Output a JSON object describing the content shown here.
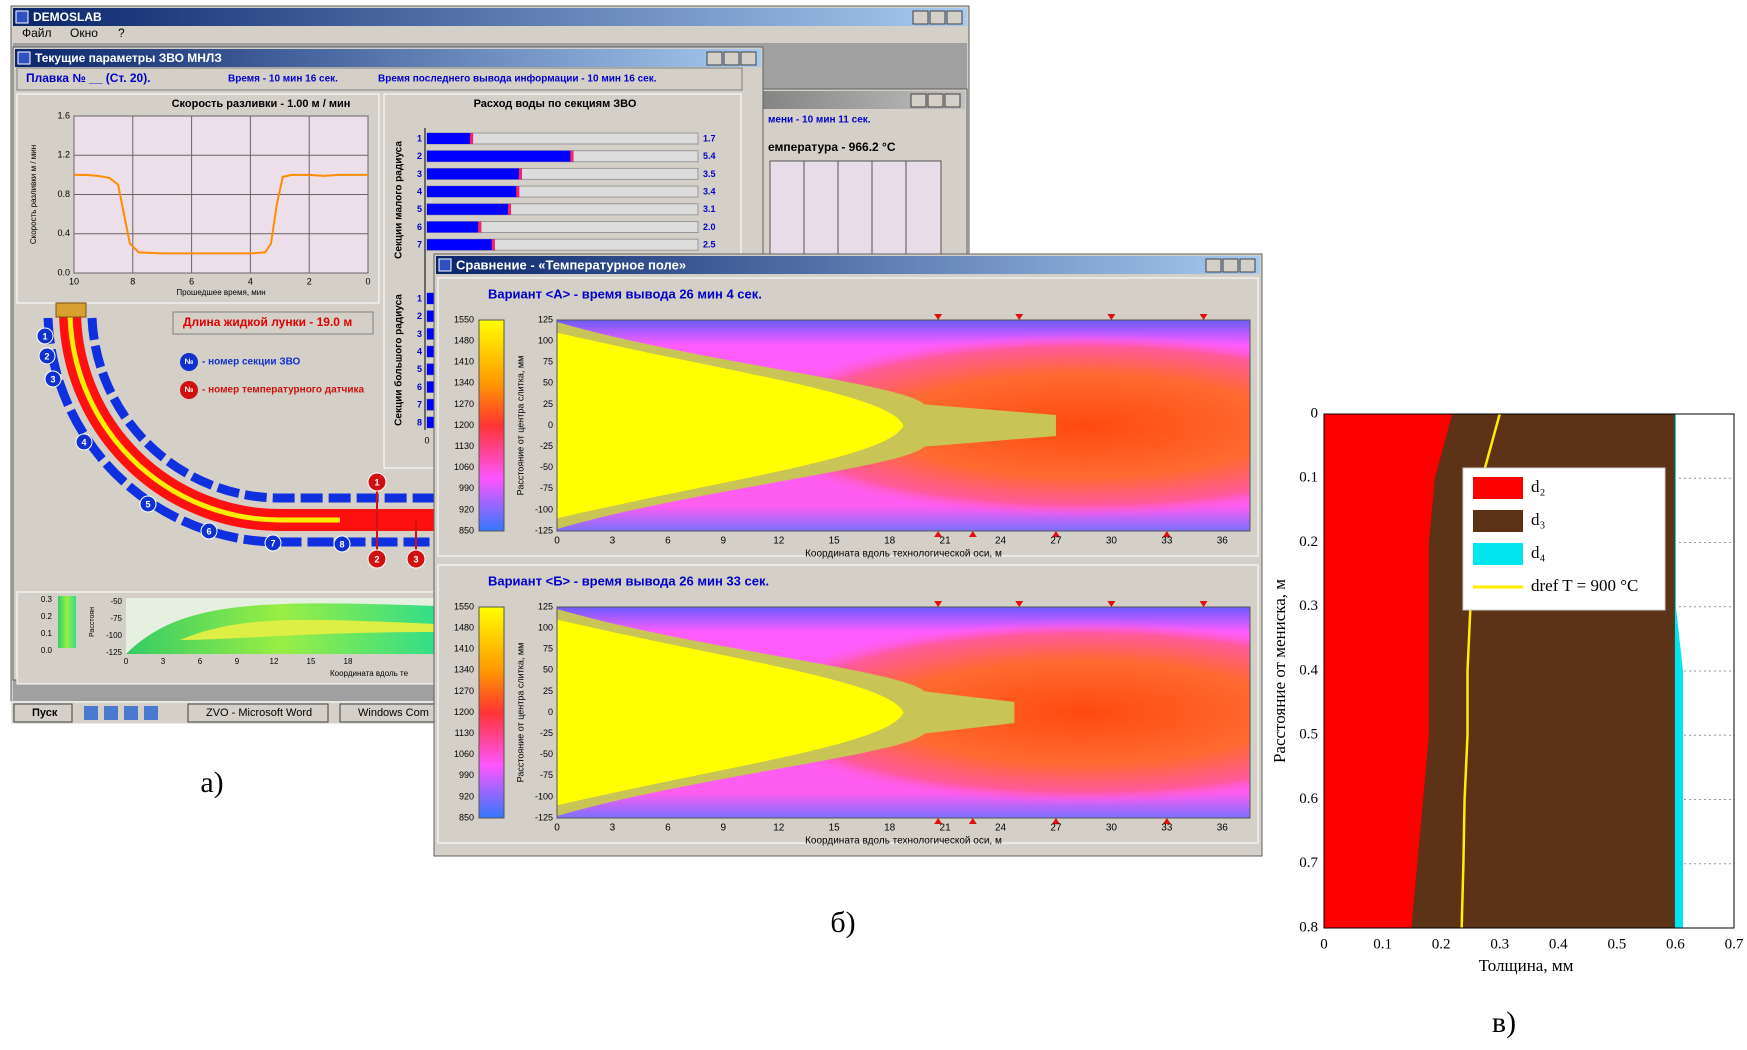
{
  "window_a": {
    "app_title": "DEMOSLAB",
    "menu": [
      "Файл",
      "Окно",
      "?"
    ],
    "child_title": "Текущие параметры ЗВО МНЛЗ",
    "heat": "Плавка № __ (Ст. 20).",
    "time": "Время - 10 мин 16 сек.",
    "last_output": "Время последнего вывода информации - 10 мин 16 сек.",
    "liquid_length": "Длина жидкой лунки - 19.0 м",
    "legend_badge": "№",
    "legend": [
      "- номер секции ЗВО",
      "- номер температурного датчика"
    ],
    "sections": [
      "1",
      "2",
      "3",
      "4",
      "5",
      "6",
      "7",
      "8"
    ],
    "sensors": [
      "1",
      "2",
      "3"
    ],
    "water_small_radius": "Секции малого радиуса",
    "water_big_radius": "Секции большого радиуса",
    "water_lower_labels": [
      "1",
      "2",
      "3",
      "4",
      "5",
      "6",
      "7",
      "8"
    ],
    "water_zero": "0",
    "mini_y_ticks": [
      "0.3",
      "0.2",
      "0.1",
      "0.0"
    ],
    "mini_ylabel": "Расстоян",
    "mini_y2_ticks": [
      "-50",
      "-75",
      "-100",
      "-125"
    ],
    "mini_x_ticks": [
      "0",
      "3",
      "6",
      "9",
      "12",
      "15",
      "18"
    ],
    "mini_xlabel": "Координата вдоль те",
    "taskbar": [
      "Пуск",
      "ZVO - Microsoft Word",
      "Windows Com"
    ]
  },
  "back_window": {
    "time": "мени - 10 мин 11 сек.",
    "temperature": "емпература - 966.2 °C"
  },
  "window_b": {
    "title": "Сравнение - «Температурное поле»",
    "panels": [
      {
        "header": "Вариант <А> -   время вывода  26 мин  4 сек."
      },
      {
        "header": "Вариант <Б> -   время вывода  26 мин  33 сек."
      }
    ],
    "ylabel": "Расстояние от центра слитка, мм",
    "xlabel": "Координата вдоль технологической оси, м",
    "xlim": [
      0,
      37.5
    ],
    "ylim": [
      -125,
      125
    ],
    "xticks": [
      0,
      3,
      6,
      9,
      12,
      15,
      18,
      21,
      24,
      27,
      30,
      33,
      36
    ],
    "yticks": [
      -125,
      -100,
      -75,
      -50,
      -25,
      0,
      25,
      50,
      75,
      100,
      125
    ],
    "color_lim": [
      850,
      1550
    ],
    "color_ticks": [
      850,
      920,
      990,
      1060,
      1130,
      1200,
      1270,
      1340,
      1410,
      1480,
      1550
    ]
  },
  "captions": [
    "а)",
    "б)",
    "в)"
  ],
  "chart_data": [
    {
      "type": "line",
      "title": "Скорость разливки -  1.00  м / мин",
      "ylabel": "Скорость разливки м / мин",
      "xlabel": "Прошедшее время, мин",
      "x": [
        10,
        9.6,
        9.2,
        8.8,
        8.5,
        8.3,
        8.1,
        7.8,
        7,
        6,
        5,
        4,
        3.5,
        3.3,
        3.1,
        2.9,
        2.6,
        2,
        1.5,
        1,
        0.5,
        0
      ],
      "values": [
        1.0,
        1.0,
        0.99,
        0.97,
        0.9,
        0.6,
        0.3,
        0.21,
        0.2,
        0.2,
        0.2,
        0.2,
        0.21,
        0.3,
        0.7,
        0.98,
        1.0,
        1.0,
        0.99,
        1.0,
        1.0,
        1.0
      ],
      "color": "#ff8c00",
      "xlim": [
        10,
        0
      ],
      "ylim": [
        0,
        1.6
      ],
      "xticks": [
        10,
        8,
        6,
        4,
        2,
        0
      ],
      "yticks": [
        {
          "value": 0,
          "label": "0.0"
        },
        0.4,
        0.8,
        1.2,
        1.6
      ],
      "grid": true
    },
    {
      "type": "hbar",
      "title": "Расход воды по секциям ЗВО",
      "categories": [
        "1",
        "2",
        "3",
        "4",
        "5",
        "6",
        "7"
      ],
      "values": [
        1.7,
        5.4,
        3.5,
        3.4,
        3.1,
        2.0,
        2.5
      ],
      "value_labels": [
        "1.7",
        "5.4",
        "3.5",
        "3.4",
        "3.1",
        "2.0",
        "2.5"
      ],
      "color": "#0000ff",
      "xlim": [
        0,
        10
      ]
    },
    {
      "type": "stacked-area",
      "ylabel": "Расстояние от мениска, м",
      "xlabel": "Толщина, мм",
      "y_inverted": true,
      "y": [
        0,
        0.1,
        0.2,
        0.3,
        0.4,
        0.5,
        0.6,
        0.7,
        0.8
      ],
      "series": [
        {
          "name": "d₂",
          "color": "#ff0000",
          "values": [
            0.22,
            0.19,
            0.18,
            0.18,
            0.18,
            0.18,
            0.17,
            0.16,
            0.15
          ]
        },
        {
          "name": "d₃",
          "color": "#5c3317",
          "values": [
            0.38,
            0.41,
            0.42,
            0.42,
            0.42,
            0.42,
            0.43,
            0.44,
            0.45
          ]
        },
        {
          "name": "d₄",
          "color": "#00e5ee",
          "values": [
            0,
            0,
            0,
            0,
            0.012,
            0.012,
            0.012,
            0.012,
            0.012
          ]
        },
        {
          "name": "dref T = 900 °C",
          "color": "#ffee00",
          "kind": "line",
          "values": [
            0.3,
            0.27,
            0.255,
            0.25,
            0.245,
            0.245,
            0.24,
            0.238,
            0.235
          ]
        }
      ],
      "xlim": [
        0,
        0.7
      ],
      "ylim": [
        0,
        0.8
      ],
      "xticks": [
        0,
        0.1,
        0.2,
        0.3,
        0.4,
        0.5,
        0.6,
        0.7
      ],
      "yticks": [
        0,
        0.1,
        0.2,
        0.3,
        0.4,
        0.5,
        0.6,
        0.7,
        0.8
      ],
      "grid": true,
      "legend": "upper right"
    }
  ]
}
